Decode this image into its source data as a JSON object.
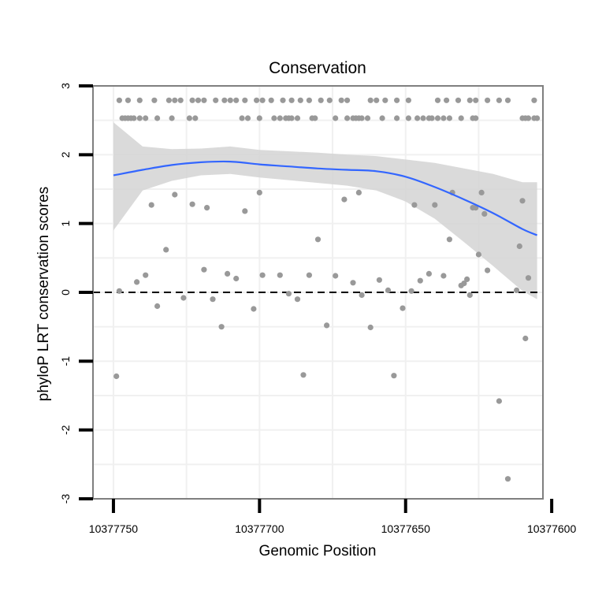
{
  "chart_data": {
    "type": "scatter",
    "title": "Conservation",
    "xlabel": "Genomic Position",
    "ylabel": "phyloP LRT conservation scores",
    "x_reversed": true,
    "xlim": [
      10377757,
      10377603
    ],
    "ylim": [
      -3,
      3
    ],
    "x_ticks": [
      10377750,
      10377700,
      10377650,
      10377600
    ],
    "x_tick_labels": [
      "10377750",
      "10377700",
      "10377650",
      "10377600"
    ],
    "y_ticks": [
      -3,
      -2,
      -1,
      0,
      1,
      2,
      3
    ],
    "y_tick_labels": [
      "-3",
      "-2",
      "-1",
      "0",
      "1",
      "2",
      "3"
    ],
    "grid": true,
    "reference_line": {
      "y": 0,
      "style": "dashed",
      "color": "#000000"
    },
    "colors": {
      "points": "#999999",
      "smooth": "#3366ff",
      "ribbon": "#d3d3d3",
      "grid": "#f0f0f0",
      "border": "#7f7f7f"
    },
    "series": [
      {
        "type": "points",
        "points": [
          [
            10377748,
            2.79
          ],
          [
            10377745,
            2.79
          ],
          [
            10377741,
            2.79
          ],
          [
            10377736,
            2.79
          ],
          [
            10377731,
            2.79
          ],
          [
            10377729,
            2.79
          ],
          [
            10377727,
            2.79
          ],
          [
            10377723,
            2.79
          ],
          [
            10377721,
            2.79
          ],
          [
            10377719,
            2.79
          ],
          [
            10377715,
            2.79
          ],
          [
            10377712,
            2.79
          ],
          [
            10377710,
            2.79
          ],
          [
            10377708,
            2.79
          ],
          [
            10377705,
            2.79
          ],
          [
            10377701,
            2.79
          ],
          [
            10377699,
            2.79
          ],
          [
            10377696,
            2.79
          ],
          [
            10377692,
            2.79
          ],
          [
            10377689,
            2.79
          ],
          [
            10377686,
            2.79
          ],
          [
            10377683,
            2.79
          ],
          [
            10377679,
            2.79
          ],
          [
            10377676,
            2.79
          ],
          [
            10377672,
            2.79
          ],
          [
            10377670,
            2.79
          ],
          [
            10377662,
            2.79
          ],
          [
            10377660,
            2.79
          ],
          [
            10377657,
            2.79
          ],
          [
            10377653,
            2.79
          ],
          [
            10377649,
            2.79
          ],
          [
            10377639,
            2.79
          ],
          [
            10377636,
            2.79
          ],
          [
            10377632,
            2.79
          ],
          [
            10377628,
            2.79
          ],
          [
            10377626,
            2.79
          ],
          [
            10377622,
            2.79
          ],
          [
            10377618,
            2.79
          ],
          [
            10377615,
            2.79
          ],
          [
            10377606,
            2.79
          ],
          [
            10377747,
            2.53
          ],
          [
            10377746,
            2.53
          ],
          [
            10377745,
            2.53
          ],
          [
            10377744,
            2.53
          ],
          [
            10377743,
            2.53
          ],
          [
            10377741,
            2.53
          ],
          [
            10377739,
            2.53
          ],
          [
            10377735,
            2.53
          ],
          [
            10377730,
            2.53
          ],
          [
            10377724,
            2.53
          ],
          [
            10377722,
            2.53
          ],
          [
            10377706,
            2.53
          ],
          [
            10377704,
            2.53
          ],
          [
            10377700,
            2.53
          ],
          [
            10377695,
            2.53
          ],
          [
            10377693,
            2.53
          ],
          [
            10377691,
            2.53
          ],
          [
            10377690,
            2.53
          ],
          [
            10377689,
            2.53
          ],
          [
            10377687,
            2.53
          ],
          [
            10377682,
            2.53
          ],
          [
            10377681,
            2.53
          ],
          [
            10377674,
            2.53
          ],
          [
            10377670,
            2.53
          ],
          [
            10377668,
            2.53
          ],
          [
            10377667,
            2.53
          ],
          [
            10377666,
            2.53
          ],
          [
            10377665,
            2.53
          ],
          [
            10377663,
            2.53
          ],
          [
            10377658,
            2.53
          ],
          [
            10377653,
            2.53
          ],
          [
            10377649,
            2.53
          ],
          [
            10377646,
            2.53
          ],
          [
            10377644,
            2.53
          ],
          [
            10377642,
            2.53
          ],
          [
            10377641,
            2.53
          ],
          [
            10377639,
            2.53
          ],
          [
            10377637,
            2.53
          ],
          [
            10377635,
            2.53
          ],
          [
            10377631,
            2.53
          ],
          [
            10377627,
            2.53
          ],
          [
            10377626,
            2.53
          ],
          [
            10377610,
            2.53
          ],
          [
            10377609,
            2.53
          ],
          [
            10377608,
            2.53
          ],
          [
            10377606,
            2.53
          ],
          [
            10377605,
            2.53
          ],
          [
            10377749,
            -1.22
          ],
          [
            10377748,
            0.02
          ],
          [
            10377742,
            0.15
          ],
          [
            10377739,
            0.25
          ],
          [
            10377737,
            1.27
          ],
          [
            10377735,
            -0.2
          ],
          [
            10377732,
            0.62
          ],
          [
            10377729,
            1.42
          ],
          [
            10377726,
            -0.08
          ],
          [
            10377723,
            1.28
          ],
          [
            10377719,
            0.33
          ],
          [
            10377718,
            1.23
          ],
          [
            10377716,
            -0.1
          ],
          [
            10377713,
            -0.5
          ],
          [
            10377711,
            0.27
          ],
          [
            10377708,
            0.2
          ],
          [
            10377705,
            1.18
          ],
          [
            10377702,
            -0.24
          ],
          [
            10377700,
            1.45
          ],
          [
            10377699,
            0.25
          ],
          [
            10377693,
            0.25
          ],
          [
            10377690,
            -0.02
          ],
          [
            10377687,
            -0.1
          ],
          [
            10377685,
            -1.2
          ],
          [
            10377683,
            0.25
          ],
          [
            10377680,
            0.77
          ],
          [
            10377677,
            -0.48
          ],
          [
            10377674,
            0.24
          ],
          [
            10377671,
            1.35
          ],
          [
            10377668,
            0.14
          ],
          [
            10377666,
            1.45
          ],
          [
            10377665,
            -0.04
          ],
          [
            10377662,
            -0.51
          ],
          [
            10377659,
            0.18
          ],
          [
            10377656,
            0.03
          ],
          [
            10377654,
            -1.21
          ],
          [
            10377651,
            -0.23
          ],
          [
            10377648,
            0.02
          ],
          [
            10377647,
            1.27
          ],
          [
            10377645,
            0.17
          ],
          [
            10377642,
            0.27
          ],
          [
            10377640,
            1.27
          ],
          [
            10377637,
            0.24
          ],
          [
            10377635,
            0.77
          ],
          [
            10377634,
            1.45
          ],
          [
            10377631,
            0.1
          ],
          [
            10377630,
            0.13
          ],
          [
            10377629,
            0.19
          ],
          [
            10377628,
            -0.04
          ],
          [
            10377627,
            1.23
          ],
          [
            10377626,
            1.23
          ],
          [
            10377625,
            0.55
          ],
          [
            10377624,
            1.45
          ],
          [
            10377623,
            1.14
          ],
          [
            10377622,
            0.32
          ],
          [
            10377618,
            -1.58
          ],
          [
            10377615,
            -2.71
          ],
          [
            10377612,
            0.03
          ],
          [
            10377611,
            0.67
          ],
          [
            10377610,
            1.33
          ],
          [
            10377609,
            -0.67
          ],
          [
            10377608,
            0.21
          ]
        ]
      },
      {
        "type": "smooth",
        "x": [
          10377750,
          10377740,
          10377730,
          10377720,
          10377710,
          10377700,
          10377690,
          10377680,
          10377670,
          10377660,
          10377650,
          10377640,
          10377630,
          10377620,
          10377610,
          10377605
        ],
        "y": [
          1.7,
          1.78,
          1.85,
          1.89,
          1.9,
          1.86,
          1.83,
          1.8,
          1.78,
          1.76,
          1.68,
          1.53,
          1.35,
          1.15,
          0.92,
          0.83
        ],
        "lower": [
          0.9,
          1.48,
          1.62,
          1.7,
          1.72,
          1.67,
          1.63,
          1.59,
          1.55,
          1.48,
          1.32,
          1.07,
          0.73,
          0.38,
          0.02,
          -0.1
        ],
        "upper": [
          2.47,
          2.12,
          2.08,
          2.09,
          2.12,
          2.07,
          2.05,
          2.03,
          2.0,
          1.98,
          1.93,
          1.88,
          1.8,
          1.72,
          1.6,
          1.6
        ]
      }
    ]
  }
}
